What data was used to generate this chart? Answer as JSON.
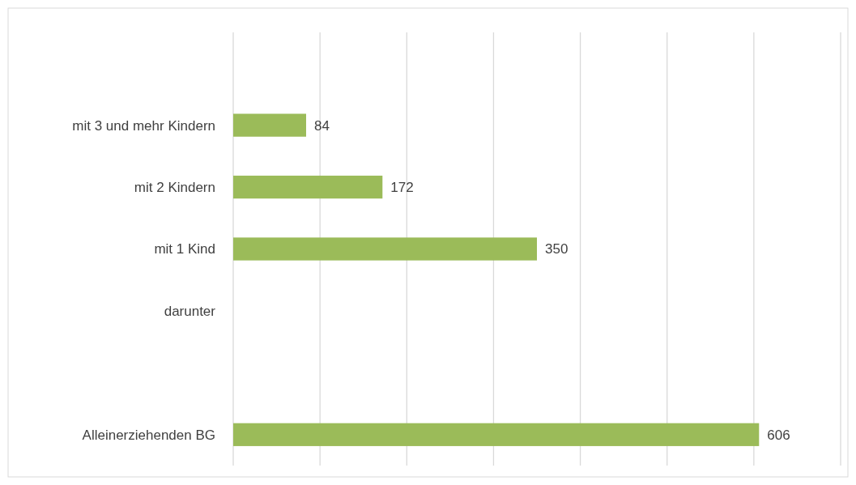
{
  "chart_data": {
    "type": "bar",
    "orientation": "horizontal",
    "categories": [
      null,
      "mit 3 und mehr Kindern",
      "mit 2 Kindern",
      "mit 1 Kind",
      "darunter",
      null,
      "Alleinerziehenden BG"
    ],
    "values": [
      null,
      84,
      172,
      350,
      null,
      null,
      606
    ],
    "color": "#9bbb59",
    "xlim": [
      0,
      700
    ],
    "xticks": [
      {
        "value": 0,
        "label": null
      },
      {
        "value": 100,
        "label": null
      },
      {
        "value": 200,
        "label": null
      },
      {
        "value": 300,
        "label": null
      },
      {
        "value": 400,
        "label": null
      },
      {
        "value": 500,
        "label": null
      },
      {
        "value": 600,
        "label": null
      },
      {
        "value": 700,
        "label": null
      }
    ],
    "grid": "x",
    "data_labels": true
  }
}
